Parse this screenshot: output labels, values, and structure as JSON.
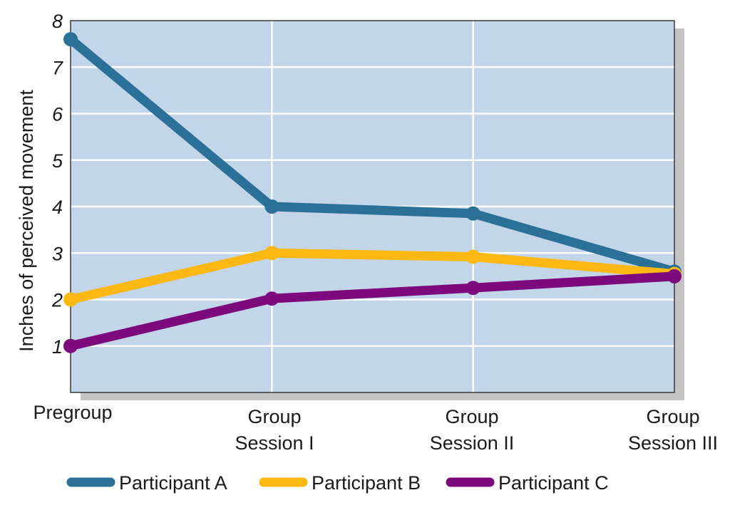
{
  "chart_data": {
    "type": "line",
    "title": "",
    "xlabel": "",
    "ylabel": "Inches of perceived movement",
    "ylim": [
      0,
      8
    ],
    "yticks": [
      "1",
      "2",
      "3",
      "4",
      "5",
      "6",
      "7",
      "8"
    ],
    "grid": true,
    "legend_position": "bottom",
    "plot_background": "#c2d5e9",
    "shadow_color": "#c4c4c4",
    "grid_color": "#ffffff",
    "categories": [
      {
        "line1": "Pregroup",
        "line2": ""
      },
      {
        "line1": "Group",
        "line2": "Session I"
      },
      {
        "line1": "Group",
        "line2": "Session II"
      },
      {
        "line1": "Group",
        "line2": "Session III"
      }
    ],
    "series": [
      {
        "name": "Participant A",
        "color": "#2a7097",
        "values": [
          7.6,
          4.0,
          3.85,
          2.6
        ]
      },
      {
        "name": "Participant B",
        "color": "#fbb813",
        "values": [
          2.0,
          3.0,
          2.92,
          2.55
        ]
      },
      {
        "name": "Participant C",
        "color": "#7c0a7c",
        "values": [
          1.0,
          2.02,
          2.25,
          2.5
        ]
      }
    ]
  }
}
